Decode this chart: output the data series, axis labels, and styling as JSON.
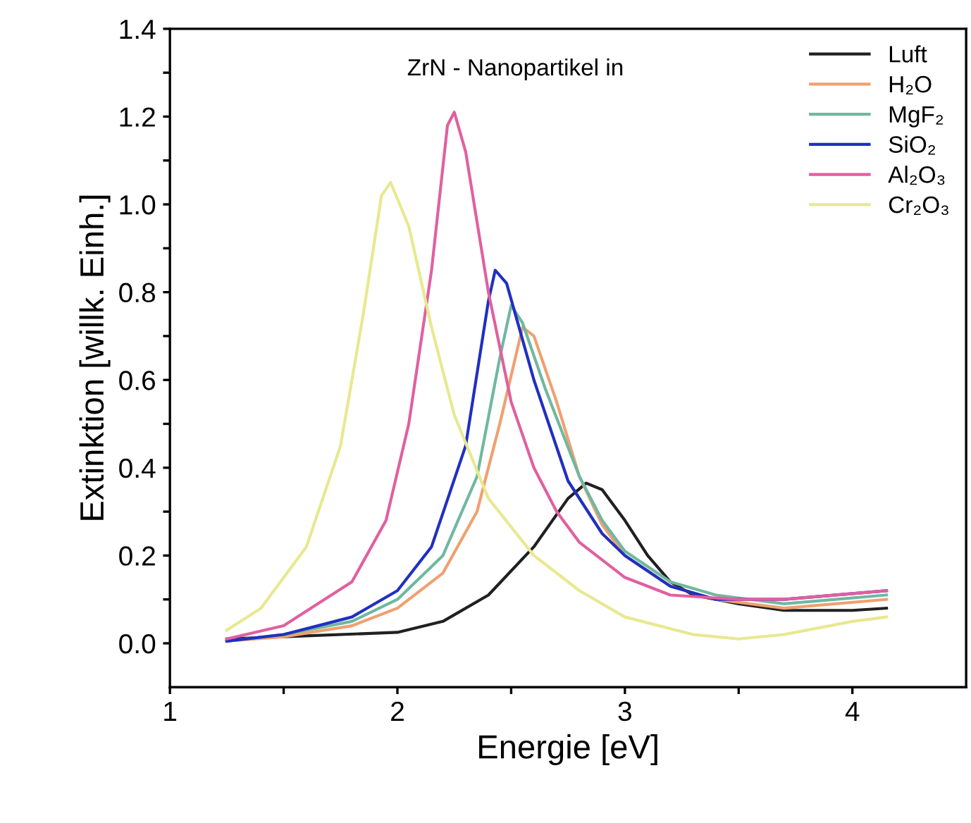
{
  "chart_data": {
    "type": "line",
    "xlabel": "Energie [eV]",
    "ylabel": "Extinktion [willk. Einh.]",
    "legend_title": "ZrN - Nanopartikel in",
    "legend": "top right",
    "grid": false,
    "marker": "none",
    "line_style": "solid",
    "xlim": [
      1,
      4.5
    ],
    "ylim": [
      -0.1,
      1.4
    ],
    "xticks": [
      1,
      {
        "value": 1.5,
        "label": null
      },
      2,
      {
        "value": 2.5,
        "label": null
      },
      3,
      {
        "value": 3.5,
        "label": null
      },
      4
    ],
    "yticks": [
      {
        "value": 0,
        "label": "0.0"
      },
      {
        "value": 0.1,
        "label": null
      },
      0.2,
      {
        "value": 0.3,
        "label": null
      },
      0.4,
      {
        "value": 0.5,
        "label": null
      },
      0.6,
      {
        "value": 0.7,
        "label": null
      },
      0.8,
      {
        "value": 0.9,
        "label": null
      },
      {
        "value": 1,
        "label": "1.0"
      },
      {
        "value": 1.1,
        "label": null
      },
      1.2,
      {
        "value": 1.3,
        "label": null
      },
      1.4
    ],
    "series": [
      {
        "name": "Luft",
        "color": "#202020",
        "x": [
          1.25,
          1.5,
          2.0,
          2.2,
          2.4,
          2.6,
          2.75,
          2.83,
          2.9,
          3.0,
          3.1,
          3.2,
          3.3,
          3.5,
          3.7,
          4.0,
          4.15
        ],
        "values": [
          0.01,
          0.015,
          0.025,
          0.05,
          0.11,
          0.22,
          0.33,
          0.365,
          0.35,
          0.28,
          0.2,
          0.14,
          0.11,
          0.09,
          0.075,
          0.075,
          0.08
        ]
      },
      {
        "name": "H₂O",
        "color": "#f0a070",
        "x": [
          1.25,
          1.5,
          1.8,
          2.0,
          2.2,
          2.35,
          2.45,
          2.55,
          2.6,
          2.7,
          2.8,
          2.9,
          3.0,
          3.2,
          3.4,
          3.7,
          4.15
        ],
        "values": [
          0.005,
          0.015,
          0.04,
          0.08,
          0.16,
          0.3,
          0.5,
          0.72,
          0.7,
          0.55,
          0.38,
          0.27,
          0.2,
          0.13,
          0.1,
          0.08,
          0.1
        ]
      },
      {
        "name": "MgF₂",
        "color": "#70b8a0",
        "x": [
          1.25,
          1.5,
          1.8,
          2.0,
          2.2,
          2.35,
          2.45,
          2.5,
          2.55,
          2.65,
          2.8,
          2.9,
          3.0,
          3.2,
          3.4,
          3.7,
          4.15
        ],
        "values": [
          0.005,
          0.02,
          0.05,
          0.1,
          0.2,
          0.38,
          0.65,
          0.77,
          0.73,
          0.58,
          0.38,
          0.28,
          0.21,
          0.14,
          0.11,
          0.09,
          0.11
        ]
      },
      {
        "name": "SiO₂",
        "color": "#2030c0",
        "x": [
          1.25,
          1.5,
          1.8,
          2.0,
          2.15,
          2.3,
          2.4,
          2.43,
          2.48,
          2.6,
          2.75,
          2.9,
          3.0,
          3.2,
          3.4,
          3.7,
          4.15
        ],
        "values": [
          0.005,
          0.02,
          0.06,
          0.12,
          0.22,
          0.45,
          0.78,
          0.85,
          0.82,
          0.6,
          0.37,
          0.25,
          0.2,
          0.13,
          0.1,
          0.1,
          0.12
        ]
      },
      {
        "name": "Al₂O₃",
        "color": "#e060a0",
        "x": [
          1.25,
          1.5,
          1.8,
          1.95,
          2.05,
          2.15,
          2.22,
          2.25,
          2.3,
          2.4,
          2.5,
          2.6,
          2.7,
          2.8,
          3.0,
          3.2,
          3.5,
          3.7,
          4.15
        ],
        "values": [
          0.01,
          0.04,
          0.14,
          0.28,
          0.5,
          0.85,
          1.18,
          1.21,
          1.12,
          0.8,
          0.55,
          0.4,
          0.3,
          0.23,
          0.15,
          0.11,
          0.1,
          0.1,
          0.12
        ]
      },
      {
        "name": "Cr₂O₃",
        "color": "#e8e890",
        "x": [
          1.25,
          1.4,
          1.6,
          1.75,
          1.85,
          1.93,
          1.97,
          2.05,
          2.15,
          2.25,
          2.4,
          2.6,
          2.8,
          3.0,
          3.3,
          3.5,
          3.7,
          4.0,
          4.15
        ],
        "values": [
          0.03,
          0.08,
          0.22,
          0.45,
          0.75,
          1.02,
          1.05,
          0.95,
          0.72,
          0.52,
          0.33,
          0.2,
          0.12,
          0.06,
          0.02,
          0.01,
          0.02,
          0.05,
          0.06
        ]
      }
    ]
  }
}
